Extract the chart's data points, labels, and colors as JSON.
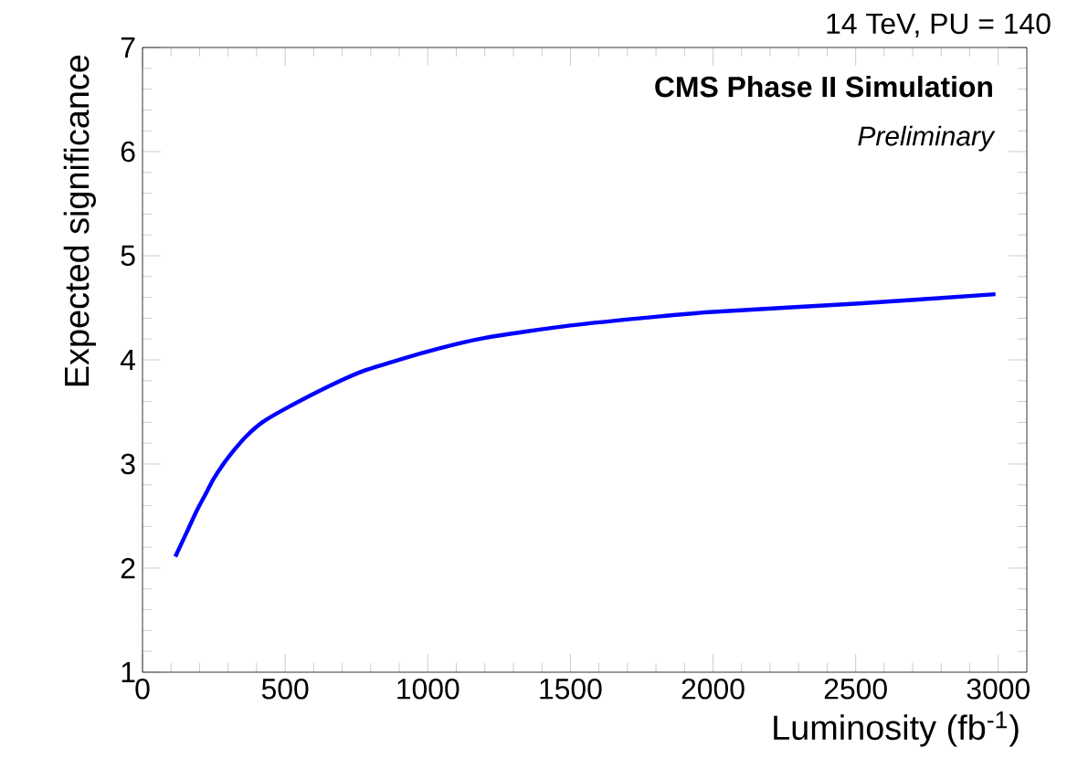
{
  "chart_data": {
    "type": "line",
    "title": "CMS Phase II Simulation",
    "subtitle": "Preliminary",
    "annotations": [
      "14 TeV, PU = 140"
    ],
    "xlabel": "Luminosity (fb$^{-1}$)",
    "ylabel": "Expected significance",
    "x": [
      115,
      156,
      190,
      219,
      250,
      281,
      320,
      365,
      420,
      500,
      656,
      781,
      1000,
      1198,
      1500,
      1823,
      2000,
      2500,
      2990
    ],
    "series": [
      {
        "color": "#0000ff",
        "values": [
          2.11,
          2.35,
          2.55,
          2.7,
          2.86,
          2.99,
          3.13,
          3.27,
          3.4,
          3.53,
          3.75,
          3.9,
          4.08,
          4.21,
          4.33,
          4.42,
          4.46,
          4.54,
          4.63
        ]
      }
    ],
    "xlim": [
      0,
      3100
    ],
    "ylim": [
      1,
      7
    ],
    "xticks": [
      0,
      500,
      1000,
      1500,
      2000,
      2500,
      3000
    ],
    "yticks": [
      1,
      2,
      3,
      4,
      5,
      6,
      7
    ],
    "grid": false,
    "marker": "none",
    "line_style": "solid"
  }
}
